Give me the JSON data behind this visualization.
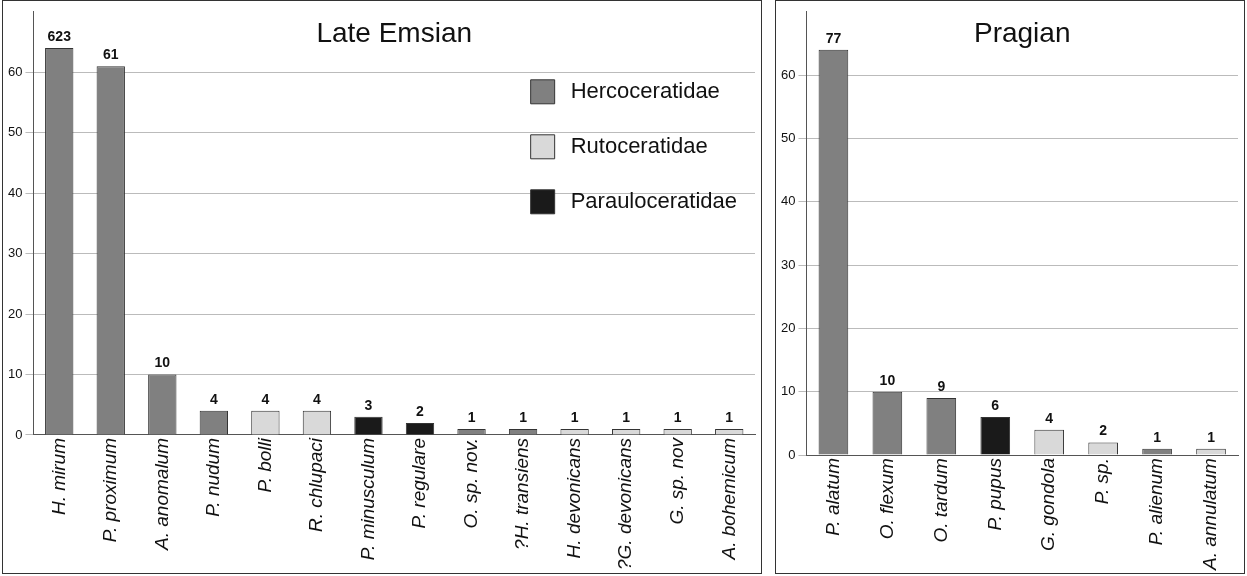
{
  "chart_data": [
    {
      "type": "bar",
      "title": "Late Emsian",
      "categories": [
        "H. mirum",
        "P. proximum",
        "A. anomalum",
        "P. nudum",
        "P. bolli",
        "R. chlupaci",
        "P. minusculum",
        "P. regulare",
        "O. sp. nov.",
        "?H. transiens",
        "H. devonicans",
        "?G. devonicans",
        "G. sp. nov",
        "A. bohemicum"
      ],
      "series": [
        {
          "name": "Hercoceratidae",
          "color": "#808080",
          "values": [
            64,
            61,
            10,
            4,
            null,
            null,
            null,
            null,
            1,
            1,
            null,
            null,
            null,
            null
          ],
          "value_labels": [
            null,
            "61",
            "10",
            "4",
            null,
            null,
            null,
            null,
            "1",
            "1",
            null,
            null,
            null,
            null
          ]
        },
        {
          "name": "Rutoceratidae",
          "color": "#d9d9d9",
          "values": [
            null,
            null,
            null,
            null,
            4,
            4,
            null,
            null,
            null,
            null,
            1,
            1,
            1,
            1
          ],
          "value_labels": [
            null,
            null,
            null,
            null,
            "4",
            "4",
            null,
            null,
            null,
            null,
            "1",
            "1",
            "1",
            "1"
          ]
        },
        {
          "name": "Parauloceratidae",
          "color": "#1a1a1a",
          "values": [
            null,
            null,
            null,
            null,
            null,
            null,
            3,
            2,
            null,
            null,
            null,
            null,
            null,
            null
          ],
          "value_labels": [
            null,
            null,
            null,
            null,
            null,
            null,
            "3",
            "2",
            null,
            null,
            null,
            null,
            null,
            null
          ]
        }
      ],
      "annotations": [
        {
          "text": "623",
          "x": "H. mirum",
          "y": 64
        }
      ],
      "ylim": [
        0,
        70
      ],
      "yticks": [
        0,
        10,
        20,
        30,
        40,
        50,
        60
      ],
      "grid": "y",
      "legend": "top right"
    },
    {
      "type": "bar",
      "title": "Pragian",
      "categories": [
        "P. alatum",
        "O. flexum",
        "O. tardum",
        "P. pupus",
        "G. gondola",
        "P. sp.",
        "P. alienum",
        "A. annulatum"
      ],
      "series": [
        {
          "color": "#808080",
          "values": [
            64,
            10,
            9,
            null,
            null,
            null,
            1,
            null
          ],
          "value_labels": [
            null,
            "10",
            "9",
            null,
            null,
            null,
            "1",
            null
          ]
        },
        {
          "color": "#d9d9d9",
          "values": [
            null,
            null,
            null,
            null,
            4,
            2,
            null,
            1
          ],
          "value_labels": [
            null,
            null,
            null,
            null,
            "4",
            "2",
            null,
            "1"
          ]
        },
        {
          "color": "#1a1a1a",
          "values": [
            null,
            null,
            null,
            6,
            null,
            null,
            null,
            null
          ],
          "value_labels": [
            null,
            null,
            null,
            "6",
            null,
            null,
            null,
            null
          ]
        }
      ],
      "annotations": [
        {
          "text": "77",
          "x": "P. alatum",
          "y": 64
        }
      ],
      "ylim": [
        0,
        70
      ],
      "yticks": [
        0,
        10,
        20,
        30,
        40,
        50,
        60
      ],
      "grid": "y",
      "legend": false
    }
  ]
}
